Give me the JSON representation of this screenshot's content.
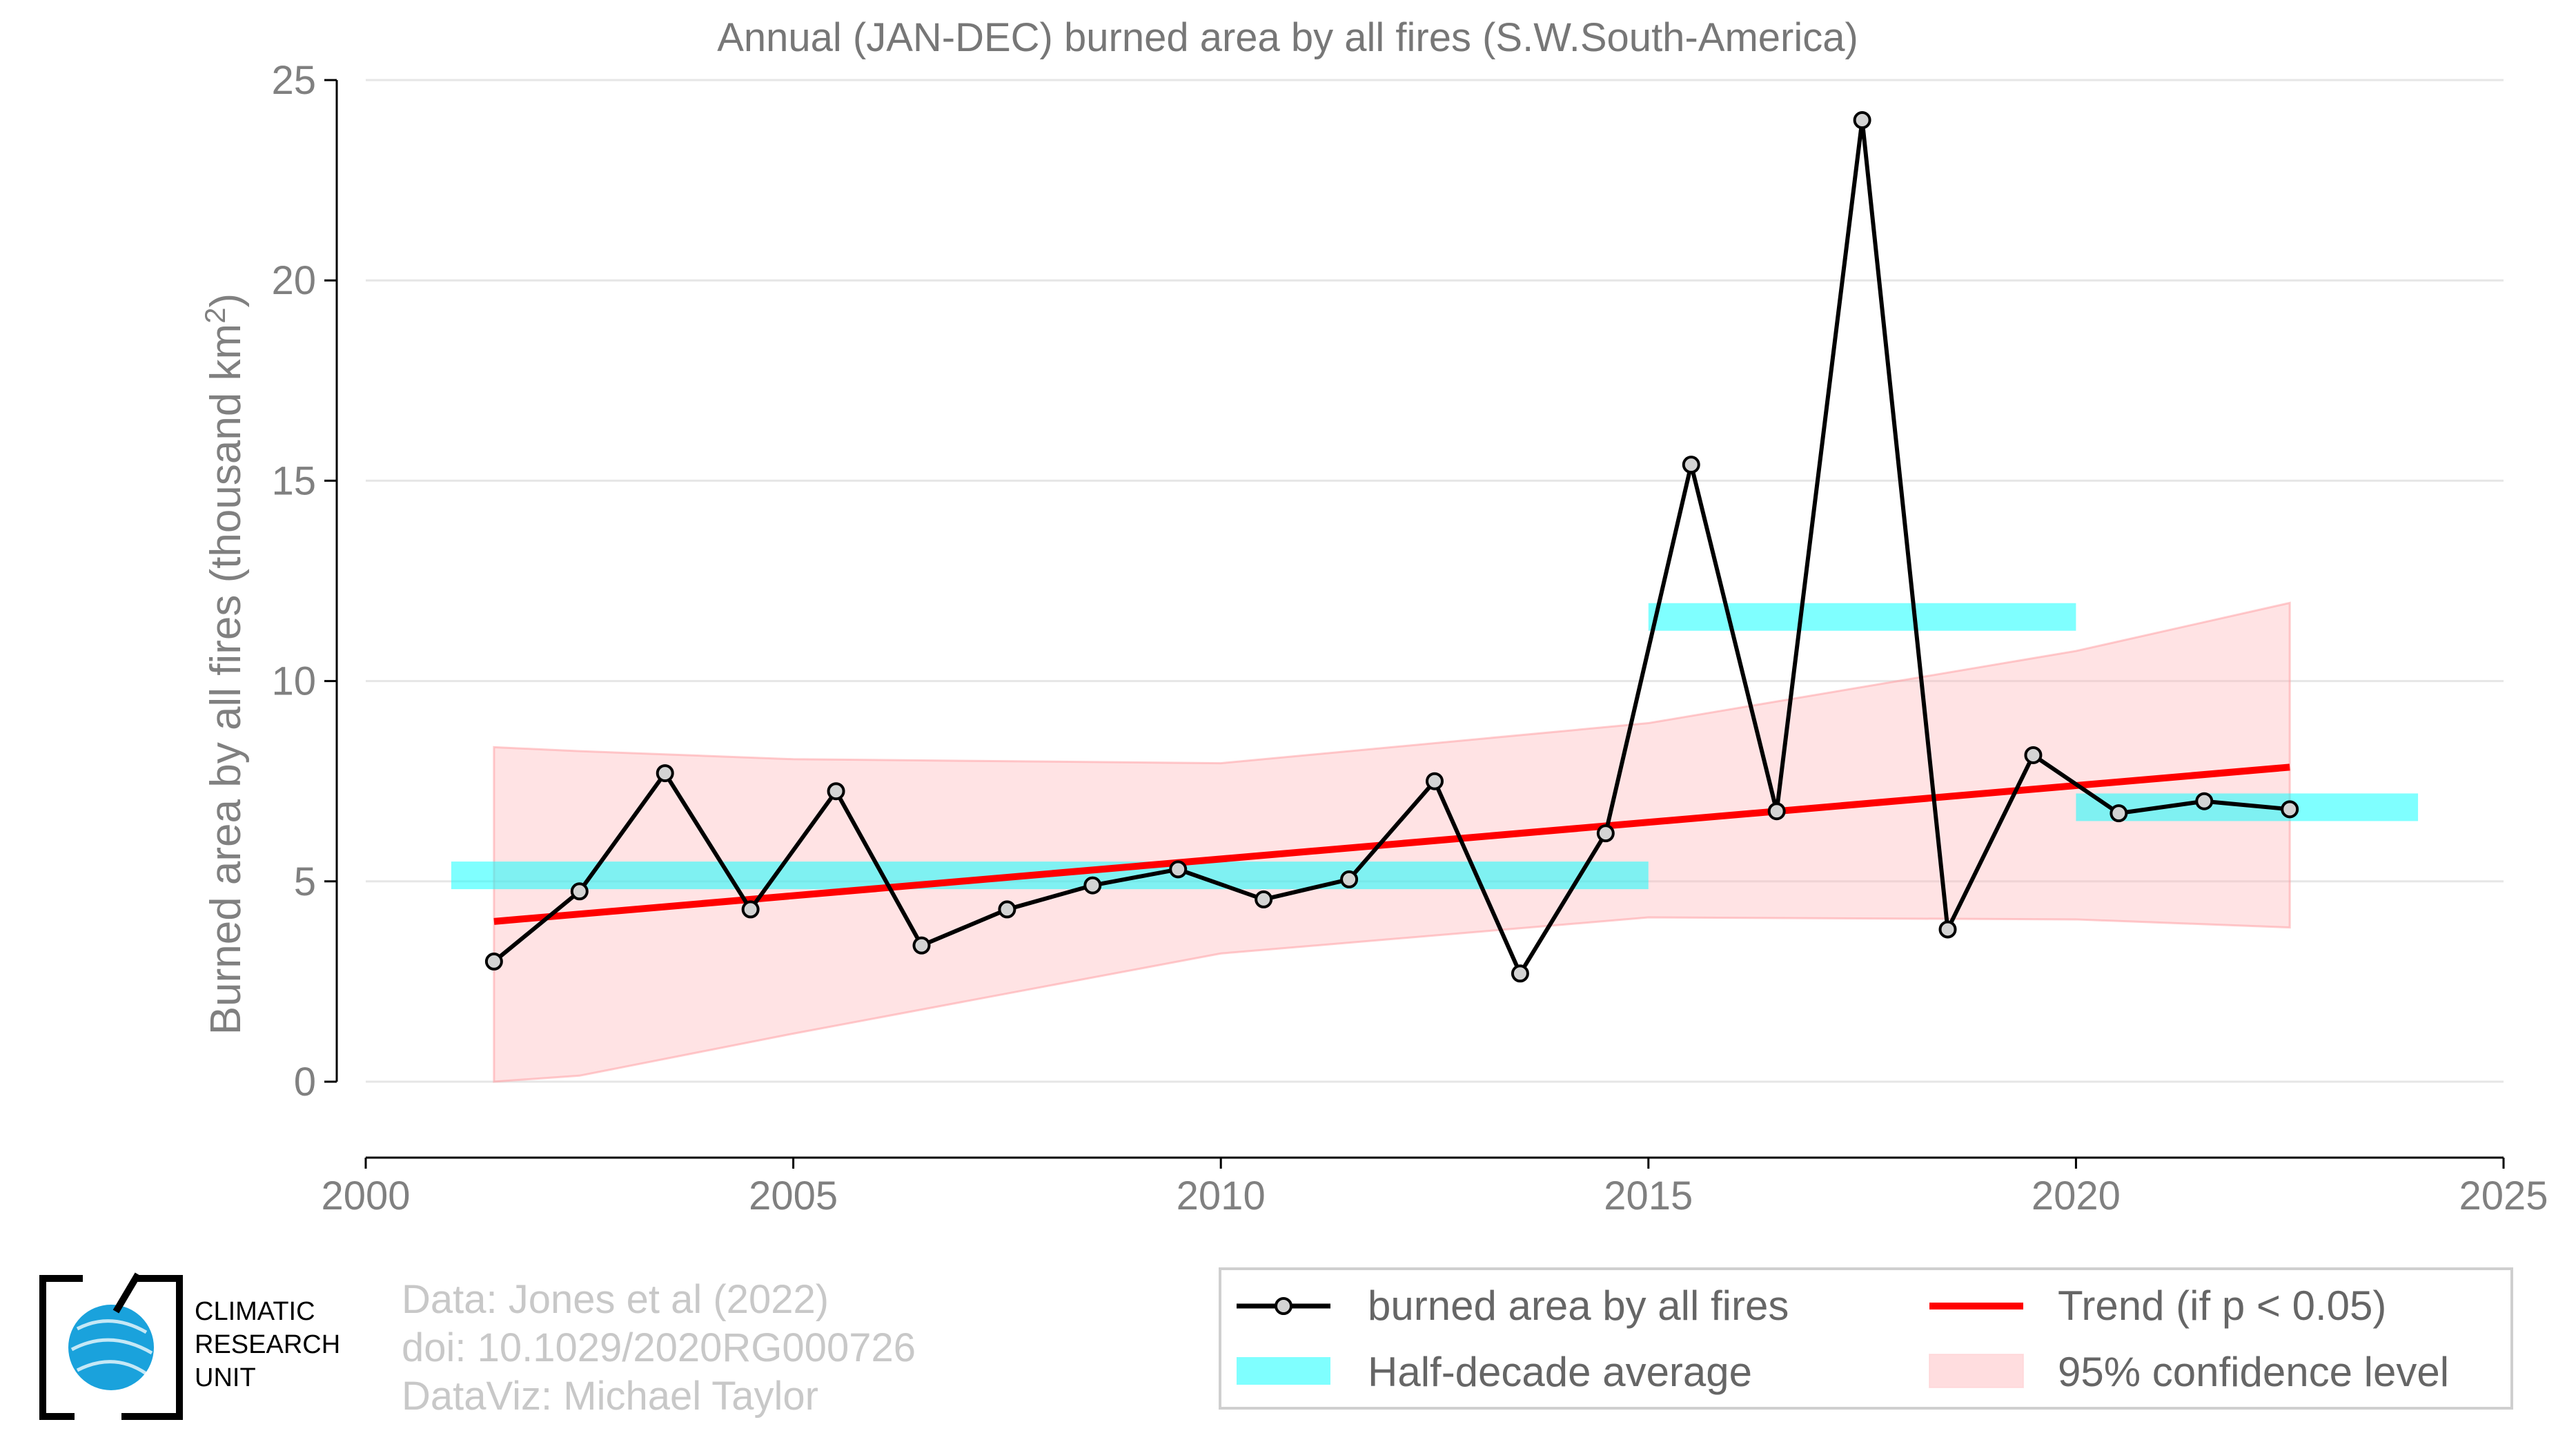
{
  "chart_data": {
    "type": "line",
    "title": "Annual (JAN-DEC) burned area by all fires (S.W.South-America)",
    "xlabel": "",
    "ylabel": "Burned area by all fires (thousand km",
    "ylabel_sup": "2",
    "ylabel_end": ")",
    "xlim": [
      2000,
      2025
    ],
    "ylim": [
      -1.9,
      25
    ],
    "xticks": [
      "2000",
      "2005",
      "2010",
      "2015",
      "2020",
      "2025"
    ],
    "yticks": [
      "0",
      "5",
      "10",
      "15",
      "20",
      "25"
    ],
    "grid": "horizontal",
    "series": [
      {
        "name": "burned area by all fires",
        "color": "#000000",
        "x": [
          2001.5,
          2002.5,
          2003.5,
          2004.5,
          2005.5,
          2006.5,
          2007.5,
          2008.5,
          2009.5,
          2010.5,
          2011.5,
          2012.5,
          2013.5,
          2014.5,
          2015.5,
          2016.5,
          2017.5,
          2018.5,
          2019.5,
          2020.5,
          2021.5,
          2022.5
        ],
        "y": [
          3.0,
          4.75,
          7.7,
          4.3,
          7.25,
          3.4,
          4.3,
          4.9,
          5.3,
          4.55,
          5.05,
          7.5,
          2.7,
          6.2,
          15.4,
          6.75,
          24.0,
          3.8,
          8.15,
          6.7,
          7.0,
          6.8
        ]
      }
    ],
    "half_decade_average": {
      "name": "Half-decade average",
      "color": "#00ffff",
      "segments": [
        {
          "x0": 2001,
          "x1": 2015,
          "y": 5.15
        },
        {
          "x0": 2015,
          "x1": 2020,
          "y": 11.6
        },
        {
          "x0": 2020,
          "x1": 2024,
          "y": 6.85
        }
      ]
    },
    "trend": {
      "name": "Trend (if p < 0.05)",
      "color": "#ff0000",
      "x": [
        2001.5,
        2022.5
      ],
      "y": [
        4.0,
        7.85
      ]
    },
    "confidence": {
      "name": "95% confidence level",
      "color": "#ffb6b9",
      "x": [
        2001.5,
        2002.5,
        2005,
        2010,
        2015,
        2020,
        2022.5
      ],
      "upper": [
        8.35,
        8.25,
        8.05,
        7.95,
        8.95,
        10.75,
        11.95
      ],
      "lower": [
        0.0,
        0.15,
        1.2,
        3.2,
        4.1,
        4.05,
        3.85
      ]
    },
    "legend_position": "bottom-right"
  },
  "credits": {
    "line1": "Data: Jones et al (2022)",
    "line2": "doi: 10.1029/2020RG000726",
    "line3": "DataViz: Michael Taylor"
  },
  "logo": {
    "line1": "CLIMATIC",
    "line2": "RESEARCH",
    "line3": "UNIT"
  }
}
